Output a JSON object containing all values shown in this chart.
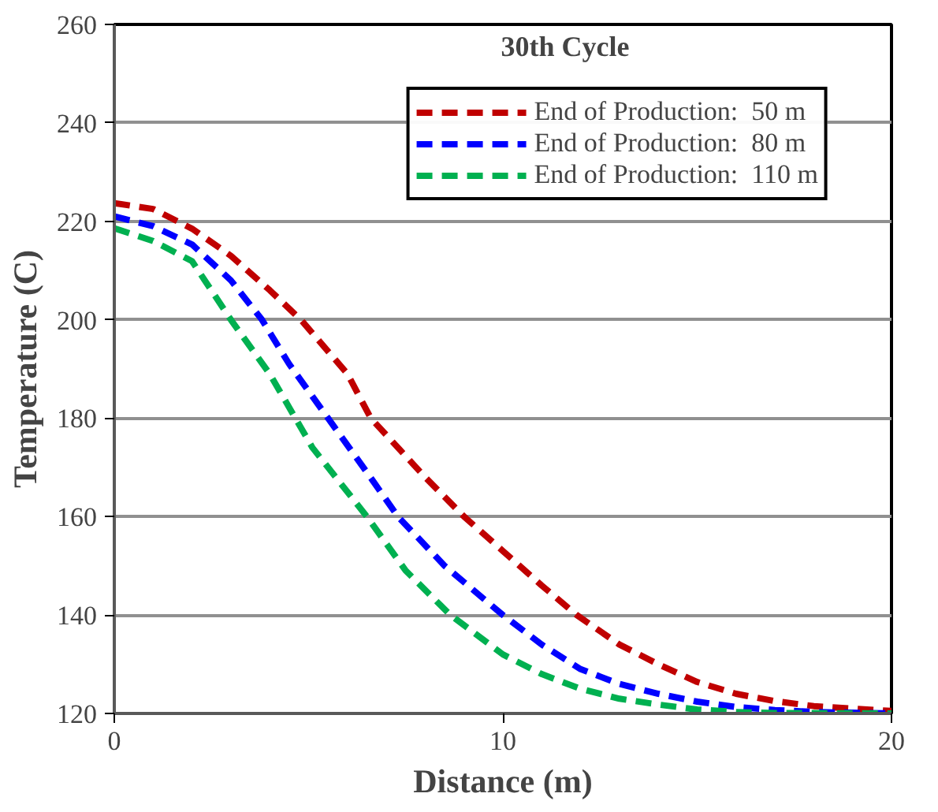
{
  "chart_data": {
    "type": "line",
    "title": "30th Cycle",
    "xlabel": "Distance (m)",
    "ylabel": "Temperature (C)",
    "xlim": [
      0,
      20
    ],
    "xticks": [
      0,
      10,
      20
    ],
    "ylim": [
      120,
      260
    ],
    "yticks": [
      120,
      140,
      160,
      180,
      200,
      220,
      240,
      260
    ],
    "grid": "y",
    "legend": "top right",
    "line_style": "dashed",
    "marker": "none",
    "series": [
      {
        "name": "End of Production:  50 m",
        "color": "#c00000",
        "x": [
          0,
          1,
          2,
          3,
          4,
          4.8,
          6,
          6.6,
          8,
          9,
          10,
          11,
          11.9,
          13,
          14,
          15,
          16,
          17,
          18,
          20
        ],
        "values": [
          223.7,
          222.5,
          218.5,
          213,
          206,
          200,
          189,
          180,
          168,
          160,
          153,
          146,
          140,
          134,
          130,
          126.4,
          124,
          122.5,
          121.5,
          120.5
        ]
      },
      {
        "name": "End of Production:  80 m",
        "color": "#0000ff",
        "x": [
          0,
          1,
          2,
          3,
          3.8,
          4.5,
          5.5,
          6.5,
          7.3,
          8.5,
          10,
          11,
          12,
          13,
          14,
          15,
          16,
          17,
          18,
          20
        ],
        "values": [
          221,
          219,
          215.3,
          208,
          200,
          191,
          180,
          169,
          160,
          150,
          140,
          134,
          129,
          126,
          124,
          122.4,
          121.3,
          120.7,
          120.3,
          120
        ]
      },
      {
        "name": "End of Production:  110 m",
        "color": "#00b050",
        "x": [
          0,
          1,
          2,
          3,
          4,
          5.1,
          6.5,
          7.5,
          8.65,
          10,
          11,
          12,
          13,
          14,
          15,
          16,
          17,
          20
        ],
        "values": [
          218.6,
          216,
          211.9,
          200,
          189,
          174,
          160,
          149,
          140,
          132,
          128,
          125,
          123,
          121.8,
          120.8,
          120.3,
          120.1,
          120
        ]
      }
    ]
  }
}
